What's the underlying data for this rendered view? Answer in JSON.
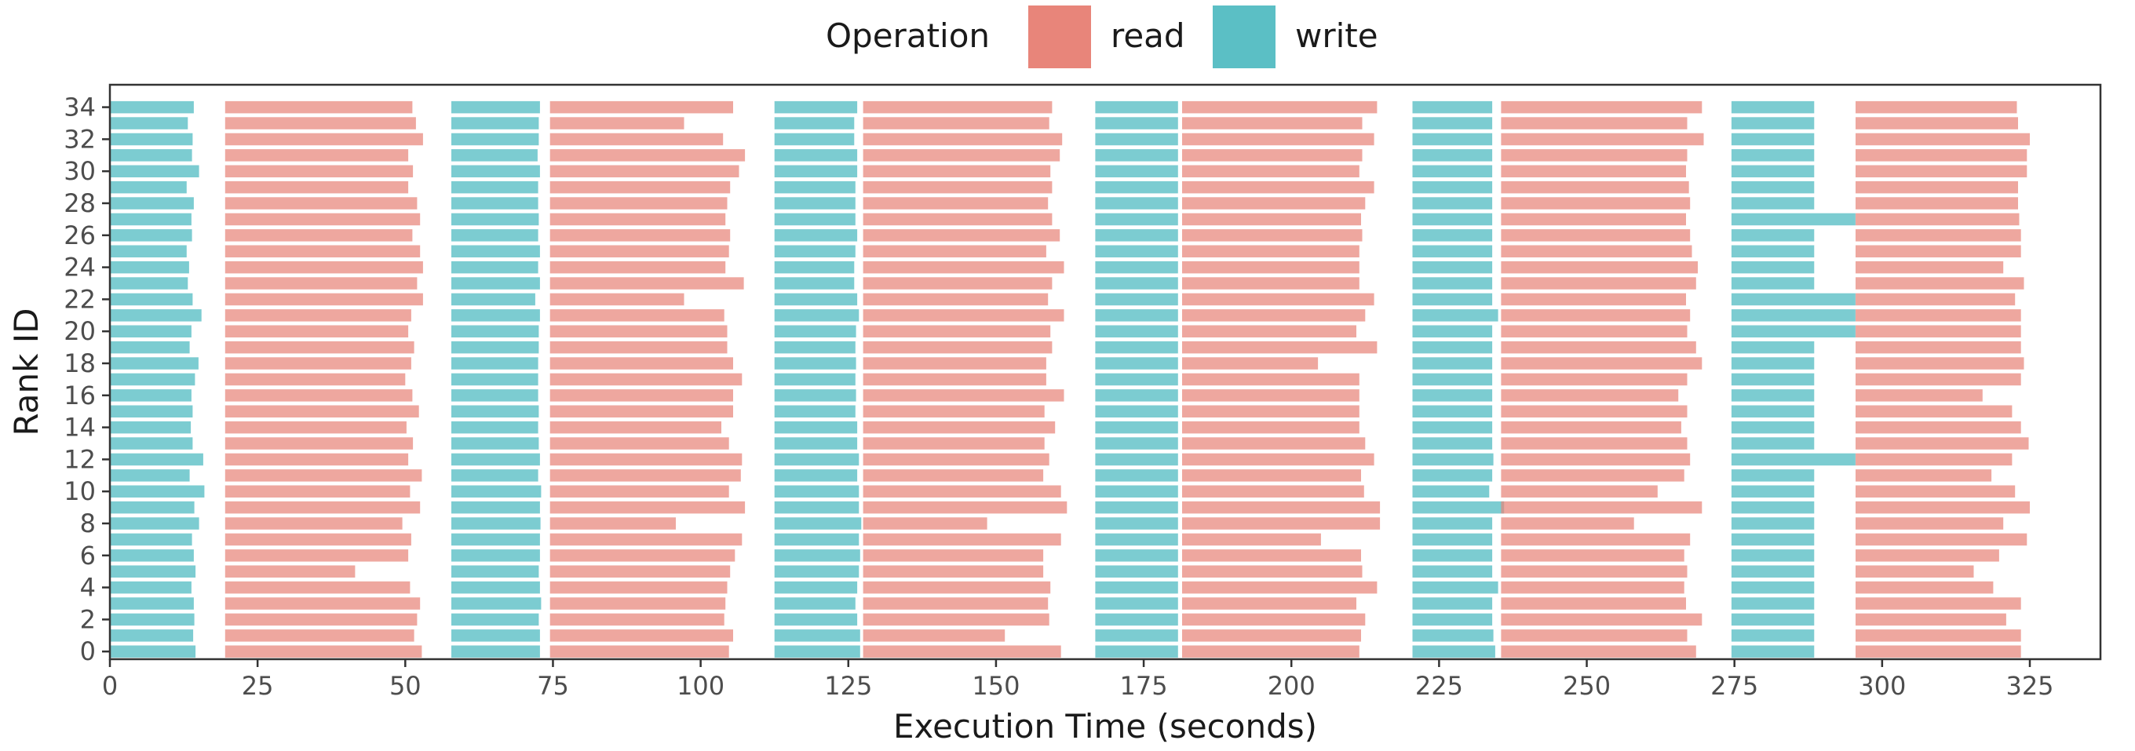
{
  "chart_data": {
    "type": "gantt",
    "title": "",
    "xlabel": "Execution Time (seconds)",
    "ylabel": "Rank ID",
    "xlim": [
      0,
      325
    ],
    "xticks": [
      0,
      25,
      50,
      75,
      100,
      125,
      150,
      175,
      200,
      225,
      250,
      275,
      300,
      325
    ],
    "yticks": [
      0,
      2,
      4,
      6,
      8,
      10,
      12,
      14,
      16,
      18,
      20,
      22,
      24,
      26,
      28,
      30,
      32,
      34
    ],
    "grid": false,
    "legend": {
      "title": "Operation",
      "position": "top",
      "entries": [
        {
          "name": "read",
          "color": "#E8857A"
        },
        {
          "name": "write",
          "color": "#5BBFC5"
        }
      ]
    },
    "ranks": 35,
    "phases": [
      {
        "operation": "write",
        "start": 0,
        "ends": [
          14.5,
          14.1,
          14.3,
          14.2,
          13.8,
          14.5,
          14.2,
          13.9,
          15.1,
          14.3,
          16.0,
          13.5,
          15.8,
          14.0,
          13.7,
          14.0,
          13.8,
          14.4,
          15.0,
          13.5,
          13.8,
          15.5,
          14.0,
          13.2,
          13.4,
          13.0,
          13.9,
          13.8,
          14.2,
          13.0,
          15.1,
          13.9,
          14.0,
          13.2,
          14.2
        ]
      },
      {
        "operation": "read",
        "start": 19.5,
        "ends": [
          52.8,
          51.5,
          52.0,
          52.5,
          50.8,
          41.5,
          50.5,
          51.0,
          49.5,
          52.5,
          50.8,
          52.8,
          50.5,
          51.3,
          50.2,
          52.3,
          51.2,
          50.0,
          51.0,
          51.5,
          50.5,
          51.0,
          53.0,
          52.0,
          53.0,
          52.5,
          51.2,
          52.5,
          52.0,
          50.5,
          51.3,
          50.5,
          53.0,
          51.8,
          51.2
        ]
      },
      {
        "operation": "write",
        "start": 57.8,
        "ends": [
          72.8,
          72.8,
          72.6,
          73.0,
          72.8,
          72.6,
          72.8,
          72.8,
          72.9,
          72.8,
          73.0,
          72.5,
          72.8,
          72.6,
          72.5,
          72.6,
          72.5,
          72.5,
          72.5,
          72.6,
          72.6,
          72.8,
          72.0,
          72.8,
          72.5,
          72.8,
          72.5,
          72.6,
          72.5,
          72.5,
          72.8,
          72.4,
          72.6,
          72.6,
          72.8
        ]
      },
      {
        "operation": "read",
        "start": 74.5,
        "ends": [
          104.8,
          105.5,
          104.0,
          104.2,
          104.5,
          105.0,
          105.8,
          107.0,
          95.8,
          107.5,
          104.8,
          106.8,
          107.0,
          104.8,
          103.5,
          105.5,
          105.5,
          107.0,
          105.5,
          104.5,
          104.5,
          104.0,
          97.2,
          107.3,
          104.2,
          104.8,
          105.0,
          104.2,
          104.5,
          105.0,
          106.5,
          107.5,
          103.8,
          97.2,
          105.5
        ]
      },
      {
        "operation": "write",
        "start": 112.5,
        "ends": [
          127.0,
          127.0,
          126.5,
          126.2,
          126.5,
          126.8,
          127.0,
          126.8,
          127.2,
          126.8,
          126.8,
          126.5,
          126.8,
          126.5,
          126.5,
          126.2,
          126.3,
          126.2,
          126.3,
          126.2,
          126.3,
          126.8,
          126.5,
          126.0,
          126.0,
          126.2,
          126.5,
          126.2,
          126.2,
          126.2,
          126.5,
          126.5,
          126.0,
          126.0,
          126.5
        ]
      },
      {
        "operation": "read",
        "start": 127.5,
        "ends": [
          161.0,
          151.5,
          159.0,
          158.8,
          159.2,
          158.0,
          158.0,
          161.0,
          148.5,
          162.0,
          161.0,
          158.0,
          159.0,
          158.2,
          160.0,
          158.2,
          161.5,
          158.5,
          158.5,
          159.5,
          159.2,
          161.5,
          158.8,
          159.5,
          161.5,
          158.5,
          160.8,
          159.5,
          158.8,
          159.5,
          159.2,
          160.8,
          161.2,
          159.0,
          159.5
        ]
      },
      {
        "operation": "write",
        "start": 166.8,
        "ends": [
          180.8,
          180.8,
          180.8,
          180.8,
          180.8,
          180.8,
          180.8,
          180.8,
          180.8,
          180.8,
          180.8,
          180.8,
          180.8,
          180.8,
          180.8,
          180.8,
          180.8,
          180.8,
          180.8,
          180.8,
          180.8,
          180.8,
          180.8,
          180.8,
          180.8,
          180.8,
          180.8,
          180.8,
          180.8,
          180.8,
          180.8,
          180.8,
          180.8,
          180.8,
          180.8
        ]
      },
      {
        "operation": "read",
        "start": 181.5,
        "ends": [
          211.5,
          211.8,
          212.5,
          211.0,
          214.5,
          212.0,
          211.8,
          205.0,
          215.0,
          215.0,
          212.3,
          211.8,
          214.0,
          212.5,
          211.5,
          211.5,
          211.5,
          211.5,
          204.5,
          214.5,
          211.0,
          212.5,
          214.0,
          211.5,
          211.5,
          211.5,
          212.0,
          211.8,
          212.5,
          214.0,
          211.5,
          212.0,
          214.0,
          212.0,
          214.5
        ]
      },
      {
        "operation": "write",
        "start": 220.5,
        "ends": [
          234.5,
          234.2,
          234.0,
          234.0,
          235.0,
          234.0,
          234.0,
          234.0,
          234.0,
          236.0,
          233.5,
          234.0,
          234.2,
          234.0,
          234.0,
          234.0,
          234.0,
          234.0,
          234.0,
          234.0,
          234.0,
          235.0,
          234.0,
          234.0,
          234.0,
          234.0,
          234.0,
          234.0,
          234.0,
          234.0,
          234.0,
          234.0,
          234.0,
          234.0,
          234.0
        ]
      },
      {
        "operation": "read",
        "start": 235.5,
        "ends": [
          268.5,
          267.0,
          269.5,
          266.8,
          266.5,
          267.0,
          266.5,
          267.5,
          258.0,
          269.5,
          262.0,
          266.5,
          267.5,
          267.0,
          266.0,
          267.0,
          265.5,
          267.0,
          269.5,
          268.5,
          267.0,
          267.5,
          266.8,
          268.5,
          268.8,
          267.8,
          267.5,
          266.8,
          267.5,
          267.3,
          266.8,
          267.0,
          269.8,
          267.0,
          269.5
        ]
      },
      {
        "operation": "write",
        "start": 274.5,
        "ends": [
          288.5,
          288.5,
          288.5,
          288.5,
          288.5,
          288.5,
          288.5,
          288.5,
          288.5,
          288.5,
          288.5,
          288.5,
          295.5,
          288.5,
          288.5,
          288.5,
          288.5,
          288.5,
          288.5,
          288.5,
          295.5,
          295.5,
          295.5,
          288.5,
          288.5,
          288.5,
          288.5,
          295.5,
          288.5,
          288.5,
          288.5,
          288.5,
          288.5,
          288.5,
          288.5
        ]
      },
      {
        "operation": "read",
        "start": 295.5,
        "ends": [
          323.5,
          323.5,
          321.0,
          323.5,
          318.8,
          315.5,
          319.8,
          324.5,
          320.5,
          325.0,
          322.5,
          318.5,
          322.0,
          324.8,
          323.5,
          322.0,
          317.0,
          323.5,
          324.0,
          323.5,
          323.5,
          323.5,
          322.5,
          324.0,
          320.5,
          323.5,
          323.5,
          323.2,
          323.0,
          323.0,
          324.5,
          324.5,
          325.0,
          323.0,
          322.8
        ]
      }
    ]
  }
}
